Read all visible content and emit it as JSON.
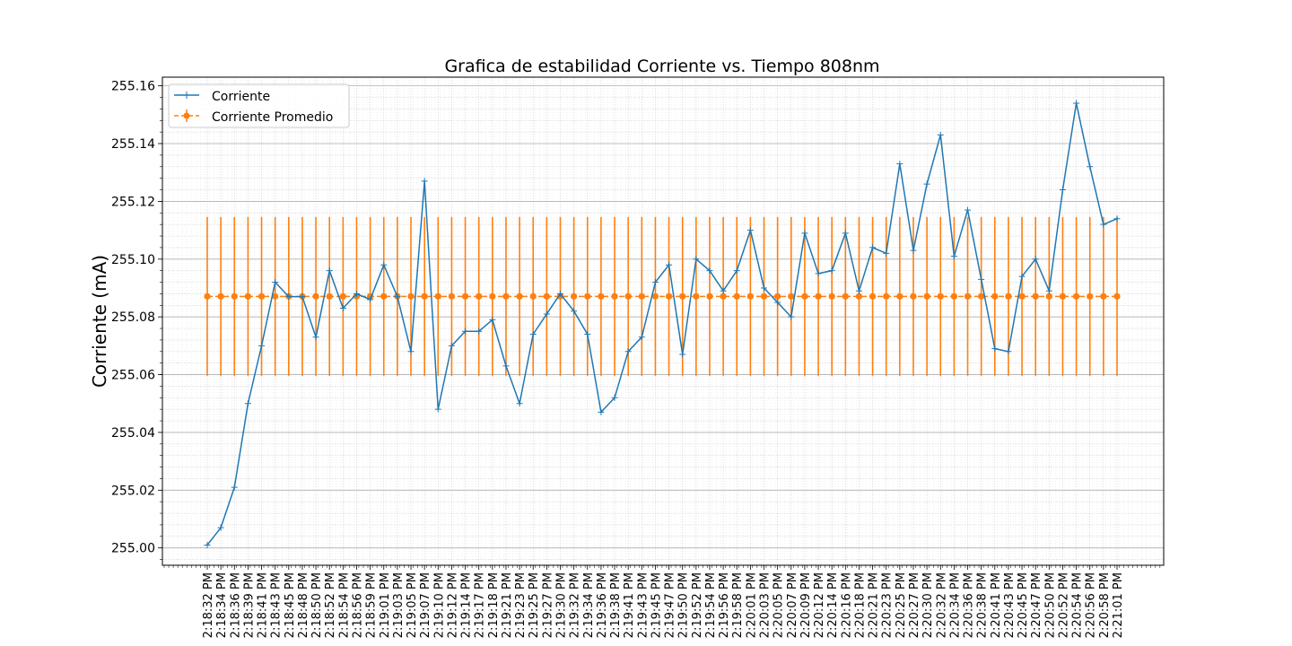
{
  "chart_data": {
    "type": "line",
    "title": "Grafica de estabilidad Corriente vs. Tiempo 808nm",
    "xlabel": "",
    "ylabel": "Corriente (mA)",
    "ylim": [
      254.994,
      255.163
    ],
    "yticks": [
      "255.00",
      "255.02",
      "255.04",
      "255.06",
      "255.08",
      "255.10",
      "255.12",
      "255.14",
      "255.16"
    ],
    "grid": true,
    "legend_position": "upper-left",
    "categories": [
      "2:18:32 PM",
      "2:18:34 PM",
      "2:18:36 PM",
      "2:18:39 PM",
      "2:18:41 PM",
      "2:18:43 PM",
      "2:18:45 PM",
      "2:18:48 PM",
      "2:18:50 PM",
      "2:18:52 PM",
      "2:18:54 PM",
      "2:18:56 PM",
      "2:18:59 PM",
      "2:19:01 PM",
      "2:19:03 PM",
      "2:19:05 PM",
      "2:19:07 PM",
      "2:19:10 PM",
      "2:19:12 PM",
      "2:19:14 PM",
      "2:19:17 PM",
      "2:19:18 PM",
      "2:19:21 PM",
      "2:19:23 PM",
      "2:19:25 PM",
      "2:19:27 PM",
      "2:19:30 PM",
      "2:19:32 PM",
      "2:19:34 PM",
      "2:19:36 PM",
      "2:19:38 PM",
      "2:19:41 PM",
      "2:19:43 PM",
      "2:19:45 PM",
      "2:19:47 PM",
      "2:19:50 PM",
      "2:19:52 PM",
      "2:19:54 PM",
      "2:19:56 PM",
      "2:19:58 PM",
      "2:20:01 PM",
      "2:20:03 PM",
      "2:20:05 PM",
      "2:20:07 PM",
      "2:20:09 PM",
      "2:20:12 PM",
      "2:20:14 PM",
      "2:20:16 PM",
      "2:20:18 PM",
      "2:20:21 PM",
      "2:20:23 PM",
      "2:20:25 PM",
      "2:20:27 PM",
      "2:20:30 PM",
      "2:20:32 PM",
      "2:20:34 PM",
      "2:20:36 PM",
      "2:20:38 PM",
      "2:20:41 PM",
      "2:20:43 PM",
      "2:20:45 PM",
      "2:20:47 PM",
      "2:20:50 PM",
      "2:20:52 PM",
      "2:20:54 PM",
      "2:20:56 PM",
      "2:20:58 PM",
      "2:21:01 PM"
    ],
    "series": [
      {
        "name": "Corriente",
        "color": "#1f77b4",
        "marker": "+",
        "line_style": "solid",
        "values": [
          255.001,
          255.007,
          255.021,
          255.05,
          255.07,
          255.092,
          255.087,
          255.087,
          255.073,
          255.096,
          255.083,
          255.088,
          255.086,
          255.098,
          255.087,
          255.068,
          255.127,
          255.048,
          255.07,
          255.075,
          255.075,
          255.079,
          255.063,
          255.05,
          255.074,
          255.081,
          255.088,
          255.082,
          255.074,
          255.047,
          255.052,
          255.068,
          255.073,
          255.092,
          255.098,
          255.067,
          255.1,
          255.096,
          255.089,
          255.096,
          255.11,
          255.09,
          255.085,
          255.08,
          255.109,
          255.095,
          255.096,
          255.109,
          255.089,
          255.104,
          255.102,
          255.133,
          255.103,
          255.126,
          255.143,
          255.101,
          255.117,
          255.093,
          255.069,
          255.068,
          255.094,
          255.1,
          255.089,
          255.124,
          255.154,
          255.132,
          255.112,
          255.114
        ]
      },
      {
        "name": "Corriente Promedio",
        "color": "#ff7f0e",
        "marker": "o",
        "line_style": "dashed",
        "value": 255.0871,
        "error": 0.0275
      }
    ]
  }
}
